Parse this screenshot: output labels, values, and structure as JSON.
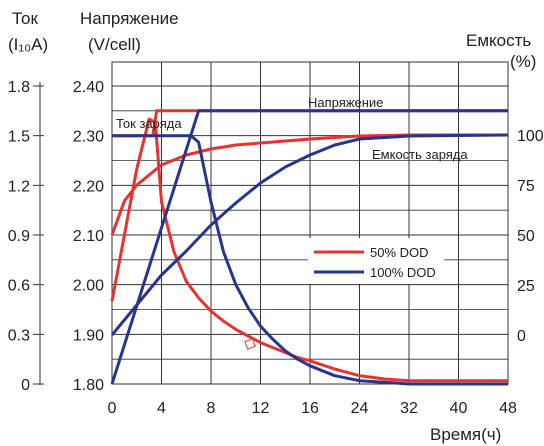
{
  "chart_data": {
    "type": "line",
    "left_axis_current": {
      "title_line1": "Ток",
      "title_line2": "(I₁₀A)",
      "ticks": [
        "0",
        "0.3",
        "0.6",
        "0.9",
        "1.2",
        "1.5",
        "1.8"
      ],
      "range": [
        0,
        1.8
      ]
    },
    "left_axis_voltage": {
      "title_line1": "Напряжение",
      "title_line2": "(V/cell)",
      "ticks": [
        "1.80",
        "1.90",
        "2.00",
        "2.10",
        "2.20",
        "2.30",
        "2.40"
      ],
      "range": [
        1.8,
        2.4
      ]
    },
    "right_axis_capacity": {
      "title_line1": "Емкость",
      "title_line2": "(%)",
      "ticks": [
        "0",
        "25",
        "50",
        "75",
        "100"
      ],
      "values": [
        0,
        25,
        50,
        75,
        100
      ]
    },
    "x_axis": {
      "label": "Время(ч)",
      "ticks": [
        "0",
        "4",
        "8",
        "12",
        "16",
        "24",
        "32",
        "40",
        "48"
      ],
      "tick_values": [
        0,
        4,
        8,
        12,
        16,
        24,
        32,
        40,
        48
      ],
      "note": "non-linear: first segment 0-16 h linear, then 8 h per division"
    },
    "annotations": {
      "voltage": "Напряжение",
      "charge_current": "Ток заряда",
      "charge_capacity": "Емкость заряда"
    },
    "legend": {
      "position": "center-right",
      "items": [
        {
          "label": "50% DOD",
          "color": "#e8322f"
        },
        {
          "label": "100% DOD",
          "color": "#27358f"
        }
      ]
    },
    "grid": true,
    "series": [
      {
        "name": "50% DOD",
        "quantity": "voltage",
        "color": "#e8322f",
        "points": [
          [
            0,
            2.3
          ],
          [
            3.3,
            2.3
          ],
          [
            3.6,
            2.35
          ],
          [
            48,
            2.35
          ]
        ]
      },
      {
        "name": "50% DOD",
        "quantity": "current",
        "color": "#e8322f",
        "points": [
          [
            0,
            0.5
          ],
          [
            1,
            0.9
          ],
          [
            2,
            1.3
          ],
          [
            3,
            1.6
          ],
          [
            3.5,
            1.58
          ],
          [
            4,
            1.1
          ],
          [
            5,
            0.8
          ],
          [
            6,
            0.62
          ],
          [
            7,
            0.52
          ],
          [
            8,
            0.44
          ],
          [
            9,
            0.38
          ],
          [
            10,
            0.33
          ],
          [
            11,
            0.29
          ],
          [
            12,
            0.25
          ],
          [
            13,
            0.22
          ],
          [
            14,
            0.19
          ],
          [
            15,
            0.16
          ],
          [
            16,
            0.14
          ],
          [
            20,
            0.09
          ],
          [
            24,
            0.05
          ],
          [
            28,
            0.03
          ],
          [
            32,
            0.02
          ],
          [
            40,
            0.02
          ],
          [
            48,
            0.02
          ]
        ]
      },
      {
        "name": "50% DOD",
        "quantity": "capacity",
        "color": "#e8322f",
        "points": [
          [
            0,
            50
          ],
          [
            1,
            67
          ],
          [
            2,
            75
          ],
          [
            3,
            80
          ],
          [
            4,
            85
          ],
          [
            6,
            90
          ],
          [
            8,
            93
          ],
          [
            10,
            95
          ],
          [
            12,
            96
          ],
          [
            16,
            98
          ],
          [
            24,
            99.5
          ],
          [
            32,
            100
          ],
          [
            48,
            100
          ]
        ]
      },
      {
        "name": "100% DOD",
        "quantity": "voltage",
        "color": "#27358f",
        "points": [
          [
            0,
            1.8
          ],
          [
            7,
            2.35
          ],
          [
            48,
            2.35
          ]
        ]
      },
      {
        "name": "100% DOD",
        "quantity": "current",
        "color": "#27358f",
        "points": [
          [
            0,
            1.5
          ],
          [
            6.4,
            1.5
          ],
          [
            7,
            1.46
          ],
          [
            8,
            1.1
          ],
          [
            9,
            0.8
          ],
          [
            10,
            0.6
          ],
          [
            11,
            0.46
          ],
          [
            12,
            0.35
          ],
          [
            13,
            0.27
          ],
          [
            14,
            0.2
          ],
          [
            15,
            0.15
          ],
          [
            16,
            0.11
          ],
          [
            20,
            0.05
          ],
          [
            24,
            0.02
          ],
          [
            28,
            0.01
          ],
          [
            32,
            0
          ],
          [
            48,
            0
          ]
        ]
      },
      {
        "name": "100% DOD",
        "quantity": "capacity",
        "color": "#27358f",
        "points": [
          [
            0,
            0
          ],
          [
            2,
            15
          ],
          [
            4,
            30
          ],
          [
            6,
            42
          ],
          [
            8,
            55
          ],
          [
            10,
            66
          ],
          [
            12,
            76
          ],
          [
            14,
            84
          ],
          [
            16,
            90
          ],
          [
            20,
            95
          ],
          [
            24,
            98
          ],
          [
            32,
            99.5
          ],
          [
            48,
            100
          ]
        ]
      }
    ]
  }
}
